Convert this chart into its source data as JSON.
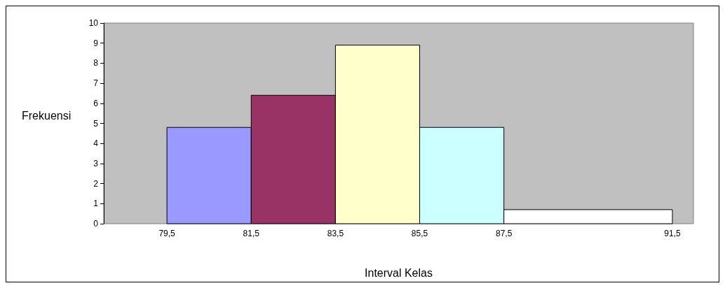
{
  "chart_data": {
    "type": "histogram",
    "xlabel": "Interval Kelas",
    "ylabel": "Frekuensi",
    "bins": [
      79.5,
      81.5,
      83.5,
      85.5,
      87.5,
      91.5
    ],
    "values": [
      4.8,
      6.4,
      8.9,
      4.8,
      0.7
    ],
    "colors": [
      "#9999ff",
      "#993366",
      "#ffffcc",
      "#ccffff",
      "#ffffff"
    ],
    "xlim": [
      78,
      92
    ],
    "xticks": [
      {
        "value": 79.5,
        "label": "79,5"
      },
      {
        "value": 81.5,
        "label": "81,5"
      },
      {
        "value": 83.5,
        "label": "83,5"
      },
      {
        "value": 85.5,
        "label": "85,5"
      },
      {
        "value": 87.5,
        "label": "87,5"
      },
      {
        "value": 91.5,
        "label": "91,5"
      }
    ],
    "ylim": [
      0,
      10
    ],
    "yticks": [
      0,
      1,
      2,
      3,
      4,
      5,
      6,
      7,
      8,
      9,
      10
    ],
    "grid": false
  }
}
